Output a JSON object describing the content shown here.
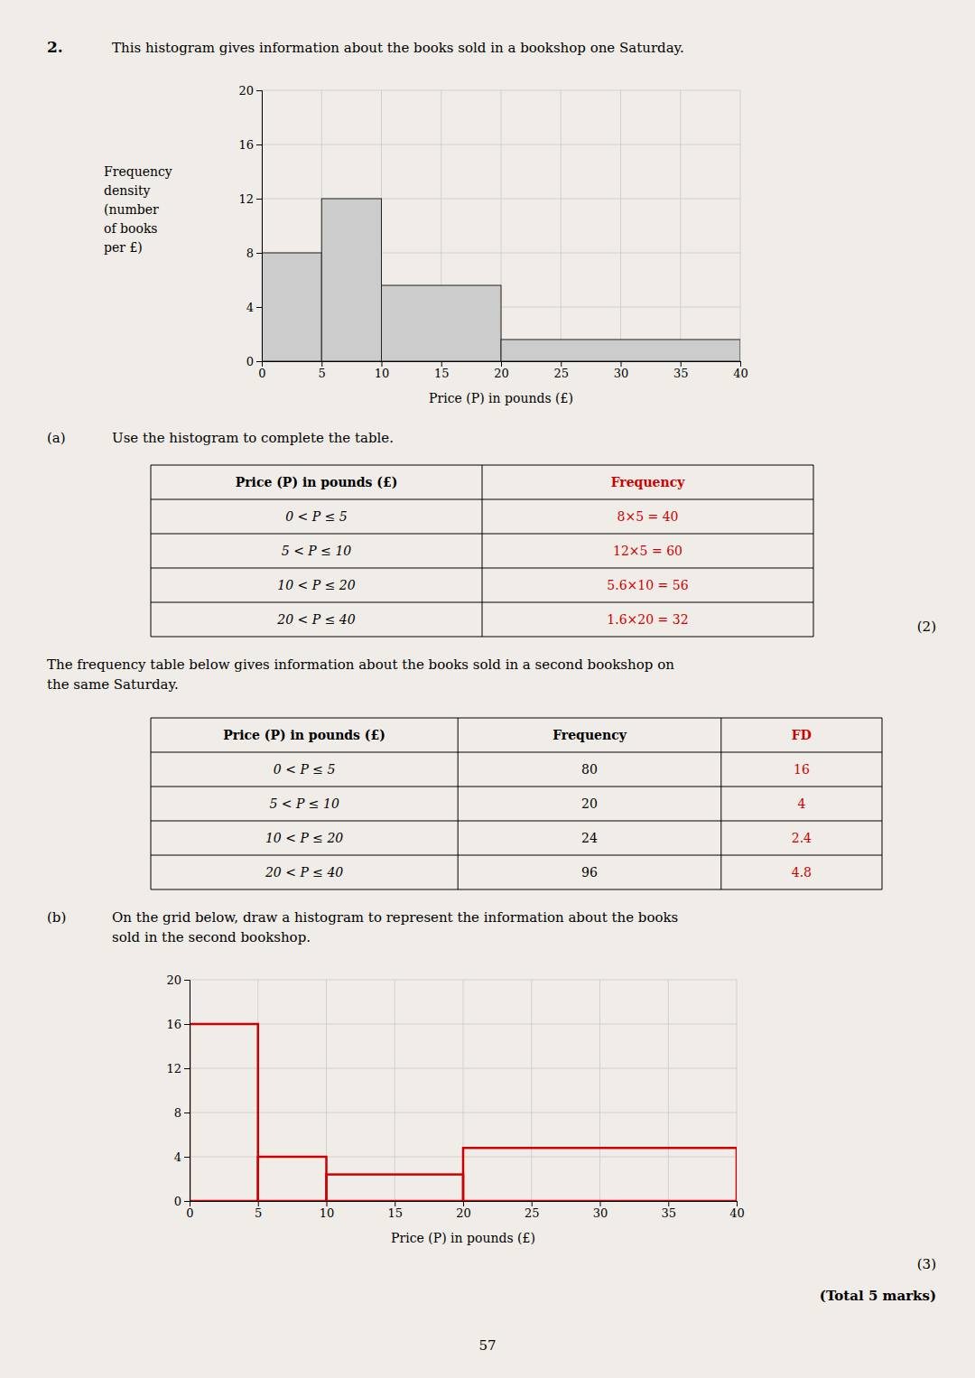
{
  "page_bg": "#f0ede8",
  "question_number": "2.",
  "question_text": "This histogram gives information about the books sold in a bookshop one Saturday.",
  "chart_data": [
    {
      "type": "histogram",
      "xlabel": "Price (P) in pounds (£)",
      "ylabel": [
        "Frequency",
        "density",
        "(number",
        "of books",
        "per £)"
      ],
      "bins": [
        0,
        5,
        10,
        20,
        40
      ],
      "values": [
        8,
        12,
        5.6,
        1.6
      ],
      "xlim": [
        0,
        40
      ],
      "ylim": [
        0,
        20
      ],
      "xticks": [
        0,
        5,
        10,
        15,
        20,
        25,
        30,
        35,
        40
      ],
      "yticks": [
        0,
        4,
        8,
        12,
        16,
        20
      ],
      "grid": true,
      "color": "#cccccc"
    },
    {
      "type": "histogram",
      "xlabel": "Price (P) in pounds (£)",
      "bins": [
        0,
        5,
        10,
        20,
        40
      ],
      "values": [
        16,
        4,
        2.4,
        4.8
      ],
      "xlim": [
        0,
        40
      ],
      "ylim": [
        0,
        20
      ],
      "xticks": [
        0,
        5,
        10,
        15,
        20,
        25,
        30,
        35,
        40
      ],
      "yticks": [
        0,
        4,
        8,
        12,
        16,
        20
      ],
      "grid": true,
      "color": "#cc0000",
      "line_style": "outline"
    }
  ],
  "part_a_label": "(a)",
  "part_a_text": "Use the histogram to complete the table.",
  "tables": [
    {
      "columns": [
        {
          "header": "Price (P) in pounds (£)"
        },
        {
          "header": "Frequency",
          "color": "#cc0000"
        }
      ],
      "rows": [
        [
          "0 < P ≤ 5",
          "8×5 = 40"
        ],
        [
          "5 < P ≤ 10",
          "12×5 = 60"
        ],
        [
          "10 < P ≤ 20",
          "5.6×10 = 56"
        ],
        [
          "20 < P ≤ 40",
          "1.6×20 = 32"
        ]
      ]
    },
    {
      "columns": [
        {
          "header": "Price (P) in pounds (£)"
        },
        {
          "header": "Frequency"
        },
        {
          "header": "FD",
          "color": "#cc0000"
        }
      ],
      "rows": [
        [
          "0 < P ≤ 5",
          "80",
          "16"
        ],
        [
          "5 < P ≤ 10",
          "20",
          "4"
        ],
        [
          "10 < P ≤ 20",
          "24",
          "2.4"
        ],
        [
          "20 < P ≤ 40",
          "96",
          "4.8"
        ]
      ]
    }
  ],
  "marks1": "(2)",
  "para_text1": "The frequency table below gives information about the books sold in a second bookshop on\nthe same Saturday.",
  "part_b_label": "(b)",
  "part_b_text": "On the grid below, draw a histogram to represent the information about the books\nsold in the second bookshop.",
  "marks2": "(3)",
  "total_marks": "(Total 5 marks)",
  "page_number": "57"
}
